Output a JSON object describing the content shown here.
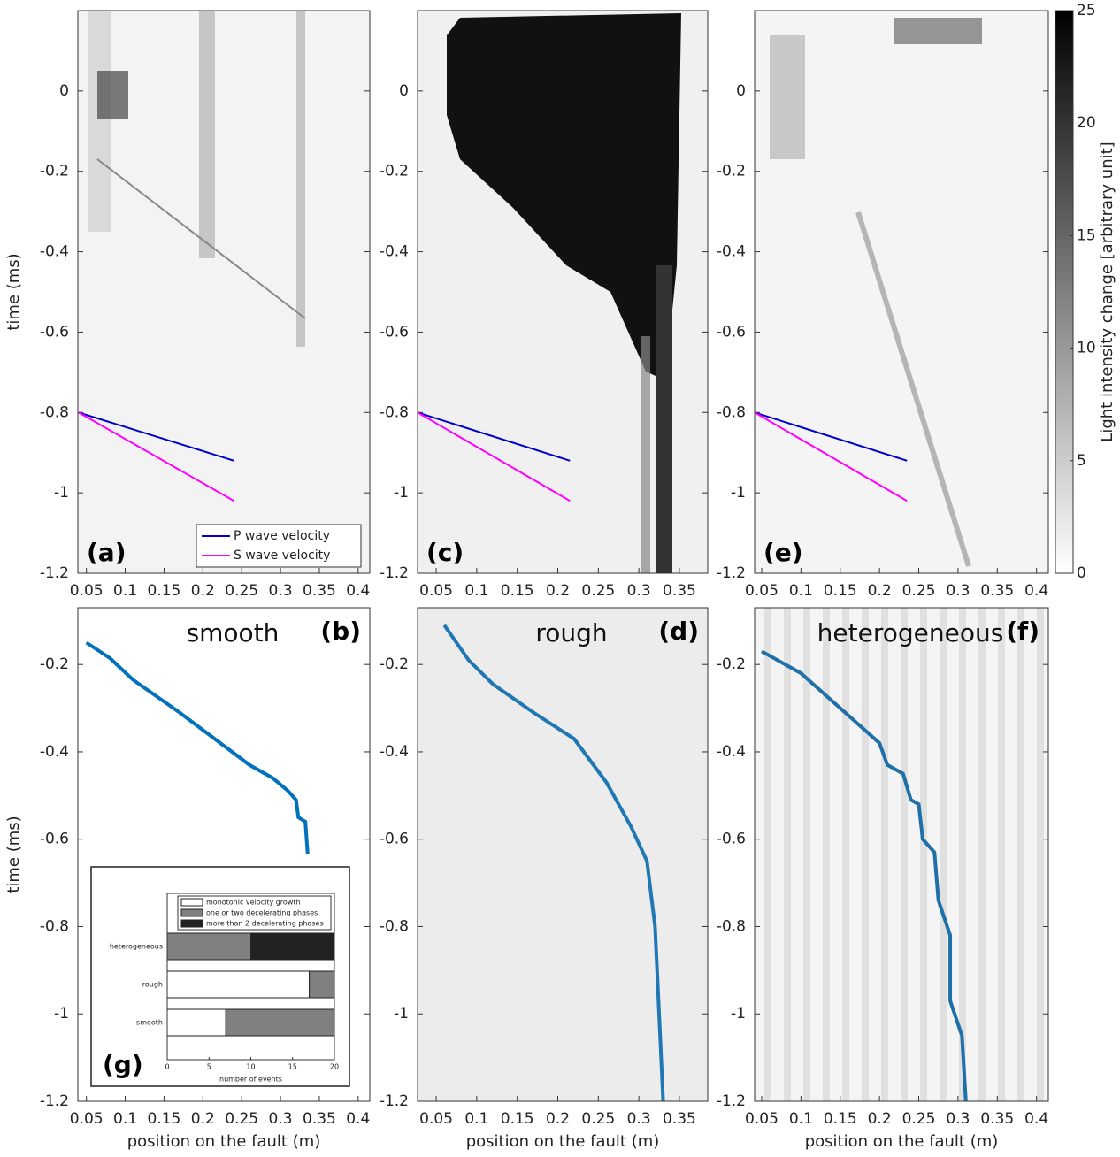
{
  "chart_data": [
    {
      "type": "line",
      "panel": "(a)",
      "ylabel": "time (ms)",
      "xlim": [
        0.039,
        0.415
      ],
      "ylim": [
        -1.2,
        0.2
      ],
      "xticks": [
        0.05,
        0.1,
        0.15,
        0.2,
        0.25,
        0.3,
        0.35,
        0.4
      ],
      "yticks": [
        -1.2,
        -1,
        -0.8,
        -0.6,
        -0.4,
        -0.2,
        0
      ],
      "x": [
        0.04,
        0.24
      ],
      "series": [
        {
          "name": "P wave velocity",
          "color": "#0000cc",
          "values": [
            -0.8,
            -0.92
          ]
        },
        {
          "name": "S wave velocity",
          "color": "#ff00ff",
          "values": [
            -0.8,
            -1.02
          ]
        }
      ],
      "legend": "lower right"
    },
    {
      "type": "line",
      "panel": "(c)",
      "xlim": [
        0.027,
        0.385
      ],
      "ylim": [
        -1.2,
        0.2
      ],
      "xticks": [
        0.05,
        0.1,
        0.15,
        0.2,
        0.25,
        0.3,
        0.35
      ],
      "yticks": [
        -1.2,
        -1,
        -0.8,
        -0.6,
        -0.4,
        -0.2,
        0
      ],
      "x": [
        0.027,
        0.215
      ],
      "series": [
        {
          "color": "#0000cc",
          "values": [
            -0.8,
            -0.92
          ]
        },
        {
          "color": "#ff00ff",
          "values": [
            -0.8,
            -1.02
          ]
        }
      ]
    },
    {
      "type": "line",
      "panel": "(e)",
      "xlim": [
        0.041,
        0.415
      ],
      "ylim": [
        -1.2,
        0.2
      ],
      "xticks": [
        0.05,
        0.1,
        0.15,
        0.2,
        0.25,
        0.3,
        0.35,
        0.4
      ],
      "yticks": [
        -1.2,
        -1,
        -0.8,
        -0.6,
        -0.4,
        -0.2,
        0
      ],
      "x": [
        0.041,
        0.235
      ],
      "series": [
        {
          "color": "#0000cc",
          "values": [
            -0.8,
            -0.92
          ]
        },
        {
          "color": "#ff00ff",
          "values": [
            -0.8,
            -1.02
          ]
        }
      ],
      "colorbar": {
        "label": "Light intensity change [arbitrary unit]",
        "lim": [
          0,
          25
        ],
        "ticks": [
          0,
          5,
          10,
          15,
          20,
          25
        ]
      }
    },
    {
      "type": "line",
      "title": "smooth",
      "panel": "(b)",
      "xlabel": "position on the fault  (m)",
      "ylabel": "time (ms)",
      "xlim": [
        0.039,
        0.415
      ],
      "ylim": [
        -1.2,
        -0.07
      ],
      "xticks": [
        0.05,
        0.1,
        0.15,
        0.2,
        0.25,
        0.3,
        0.35,
        0.4
      ],
      "yticks": [
        -1.2,
        -1,
        -0.8,
        -0.6,
        -0.4,
        -0.2
      ],
      "x": [
        0.05,
        0.08,
        0.11,
        0.17,
        0.23,
        0.26,
        0.29,
        0.31,
        0.32,
        0.323,
        0.332,
        0.335
      ],
      "series": [
        {
          "color": "#0072bd",
          "values": [
            -0.15,
            -0.185,
            -0.235,
            -0.31,
            -0.39,
            -0.43,
            -0.46,
            -0.49,
            -0.51,
            -0.55,
            -0.56,
            -0.635
          ]
        }
      ]
    },
    {
      "type": "line",
      "title": "rough",
      "panel": "(d)",
      "xlabel": "position on the fault  (m)",
      "xlim": [
        0.027,
        0.385
      ],
      "ylim": [
        -1.2,
        -0.07
      ],
      "xticks": [
        0.05,
        0.1,
        0.15,
        0.2,
        0.25,
        0.3,
        0.35
      ],
      "yticks": [
        -1.2,
        -1,
        -0.8,
        -0.6,
        -0.4,
        -0.2
      ],
      "x": [
        0.06,
        0.09,
        0.12,
        0.17,
        0.22,
        0.26,
        0.29,
        0.31,
        0.32,
        0.325,
        0.33
      ],
      "series": [
        {
          "color": "#1f77b4",
          "values": [
            -0.11,
            -0.19,
            -0.245,
            -0.31,
            -0.37,
            -0.47,
            -0.57,
            -0.65,
            -0.8,
            -1.0,
            -1.2
          ]
        }
      ]
    },
    {
      "type": "line",
      "title": "heterogeneous",
      "panel": "(f)",
      "xlabel": "position on the fault  (m)",
      "xlim": [
        0.041,
        0.415
      ],
      "ylim": [
        -1.2,
        -0.07
      ],
      "xticks": [
        0.05,
        0.1,
        0.15,
        0.2,
        0.25,
        0.3,
        0.35,
        0.4
      ],
      "yticks": [
        -1.2,
        -1,
        -0.8,
        -0.6,
        -0.4,
        -0.2
      ],
      "x": [
        0.05,
        0.1,
        0.15,
        0.2,
        0.21,
        0.23,
        0.24,
        0.25,
        0.255,
        0.27,
        0.275,
        0.29,
        0.29,
        0.305,
        0.31
      ],
      "series": [
        {
          "color": "#1f6fa8",
          "values": [
            -0.17,
            -0.22,
            -0.3,
            -0.38,
            -0.43,
            -0.45,
            -0.51,
            -0.52,
            -0.6,
            -0.63,
            -0.74,
            -0.82,
            -0.97,
            -1.05,
            -1.2
          ]
        }
      ]
    },
    {
      "type": "barh",
      "panel": "(g)",
      "xlabel": "number of events",
      "xlim": [
        0,
        20
      ],
      "xticks": [
        0,
        5,
        10,
        15,
        20
      ],
      "categories": [
        "heterogeneous",
        "rough",
        "smooth"
      ],
      "series": [
        {
          "name": "monotonic velocity growth",
          "color": "#ffffff",
          "values": [
            0,
            17,
            7
          ]
        },
        {
          "name": "one or two decelerating phases",
          "color": "#808080",
          "values": [
            10,
            3,
            13
          ]
        },
        {
          "name": "more than 2 decelerating phases",
          "color": "#222222",
          "values": [
            10,
            0,
            0
          ]
        }
      ]
    }
  ]
}
